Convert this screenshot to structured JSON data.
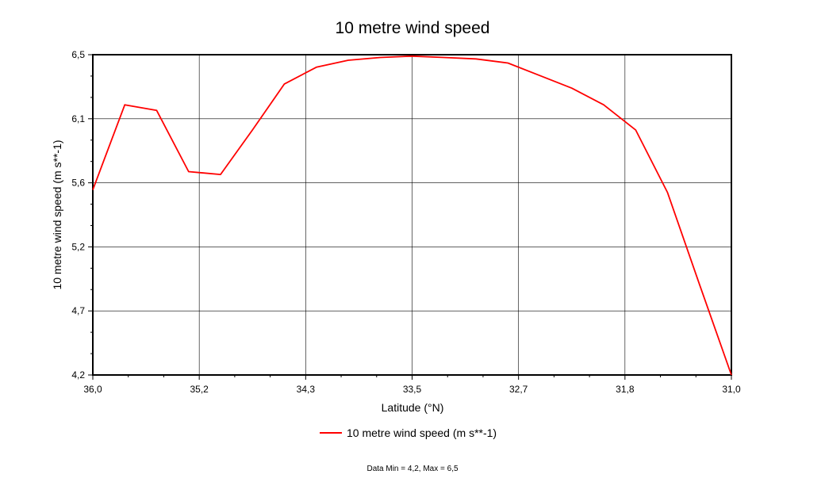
{
  "chart_data": {
    "type": "line",
    "title": "10 metre wind speed",
    "xlabel": "Latitude (°N)",
    "ylabel": "10 metre wind speed (m s**-1)",
    "x_reversed": true,
    "xlim": [
      36.0,
      31.0
    ],
    "ylim": [
      4.2,
      6.5
    ],
    "x_ticks": [
      "36,0",
      "35,2",
      "34,3",
      "33,5",
      "32,7",
      "31,8",
      "31,0"
    ],
    "y_ticks": [
      "4,2",
      "4,7",
      "5,2",
      "5,6",
      "6,1",
      "6,5"
    ],
    "grid": true,
    "legend_position": "bottom-center",
    "series": [
      {
        "name": "10 metre wind speed (m s**-1)",
        "color": "#ff0000",
        "x": [
          36.0,
          35.75,
          35.5,
          35.25,
          35.0,
          34.75,
          34.5,
          34.25,
          34.0,
          33.75,
          33.5,
          33.25,
          33.0,
          32.75,
          32.5,
          32.25,
          32.0,
          31.75,
          31.5,
          31.25,
          31.0
        ],
        "y": [
          5.53,
          6.14,
          6.1,
          5.66,
          5.64,
          5.96,
          6.29,
          6.41,
          6.46,
          6.48,
          6.49,
          6.48,
          6.47,
          6.44,
          6.35,
          6.26,
          6.14,
          5.96,
          5.51,
          4.85,
          4.2
        ]
      }
    ]
  },
  "footer": "Data Min = 4,2, Max = 6,5"
}
